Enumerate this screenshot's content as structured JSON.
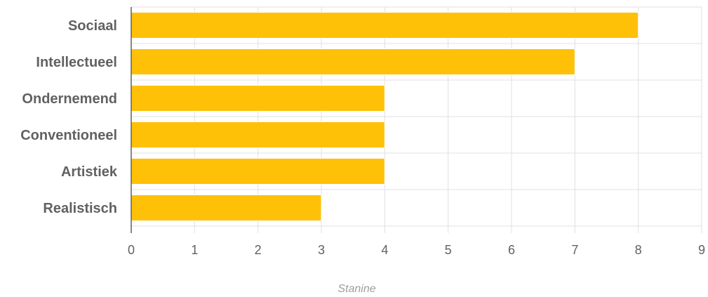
{
  "chart_data": {
    "type": "bar",
    "orientation": "horizontal",
    "categories": [
      "Sociaal",
      "Intellectueel",
      "Ondernemend",
      "Conventioneel",
      "Artistiek",
      "Realistisch"
    ],
    "values": [
      8,
      7,
      4,
      4,
      4,
      3
    ],
    "xlabel": "Stanine",
    "xlim": [
      0,
      9
    ],
    "xticks": [
      "0",
      "1",
      "2",
      "3",
      "4",
      "5",
      "6",
      "7",
      "8",
      "9"
    ],
    "grid": true,
    "bar_color": "#FFC107"
  }
}
